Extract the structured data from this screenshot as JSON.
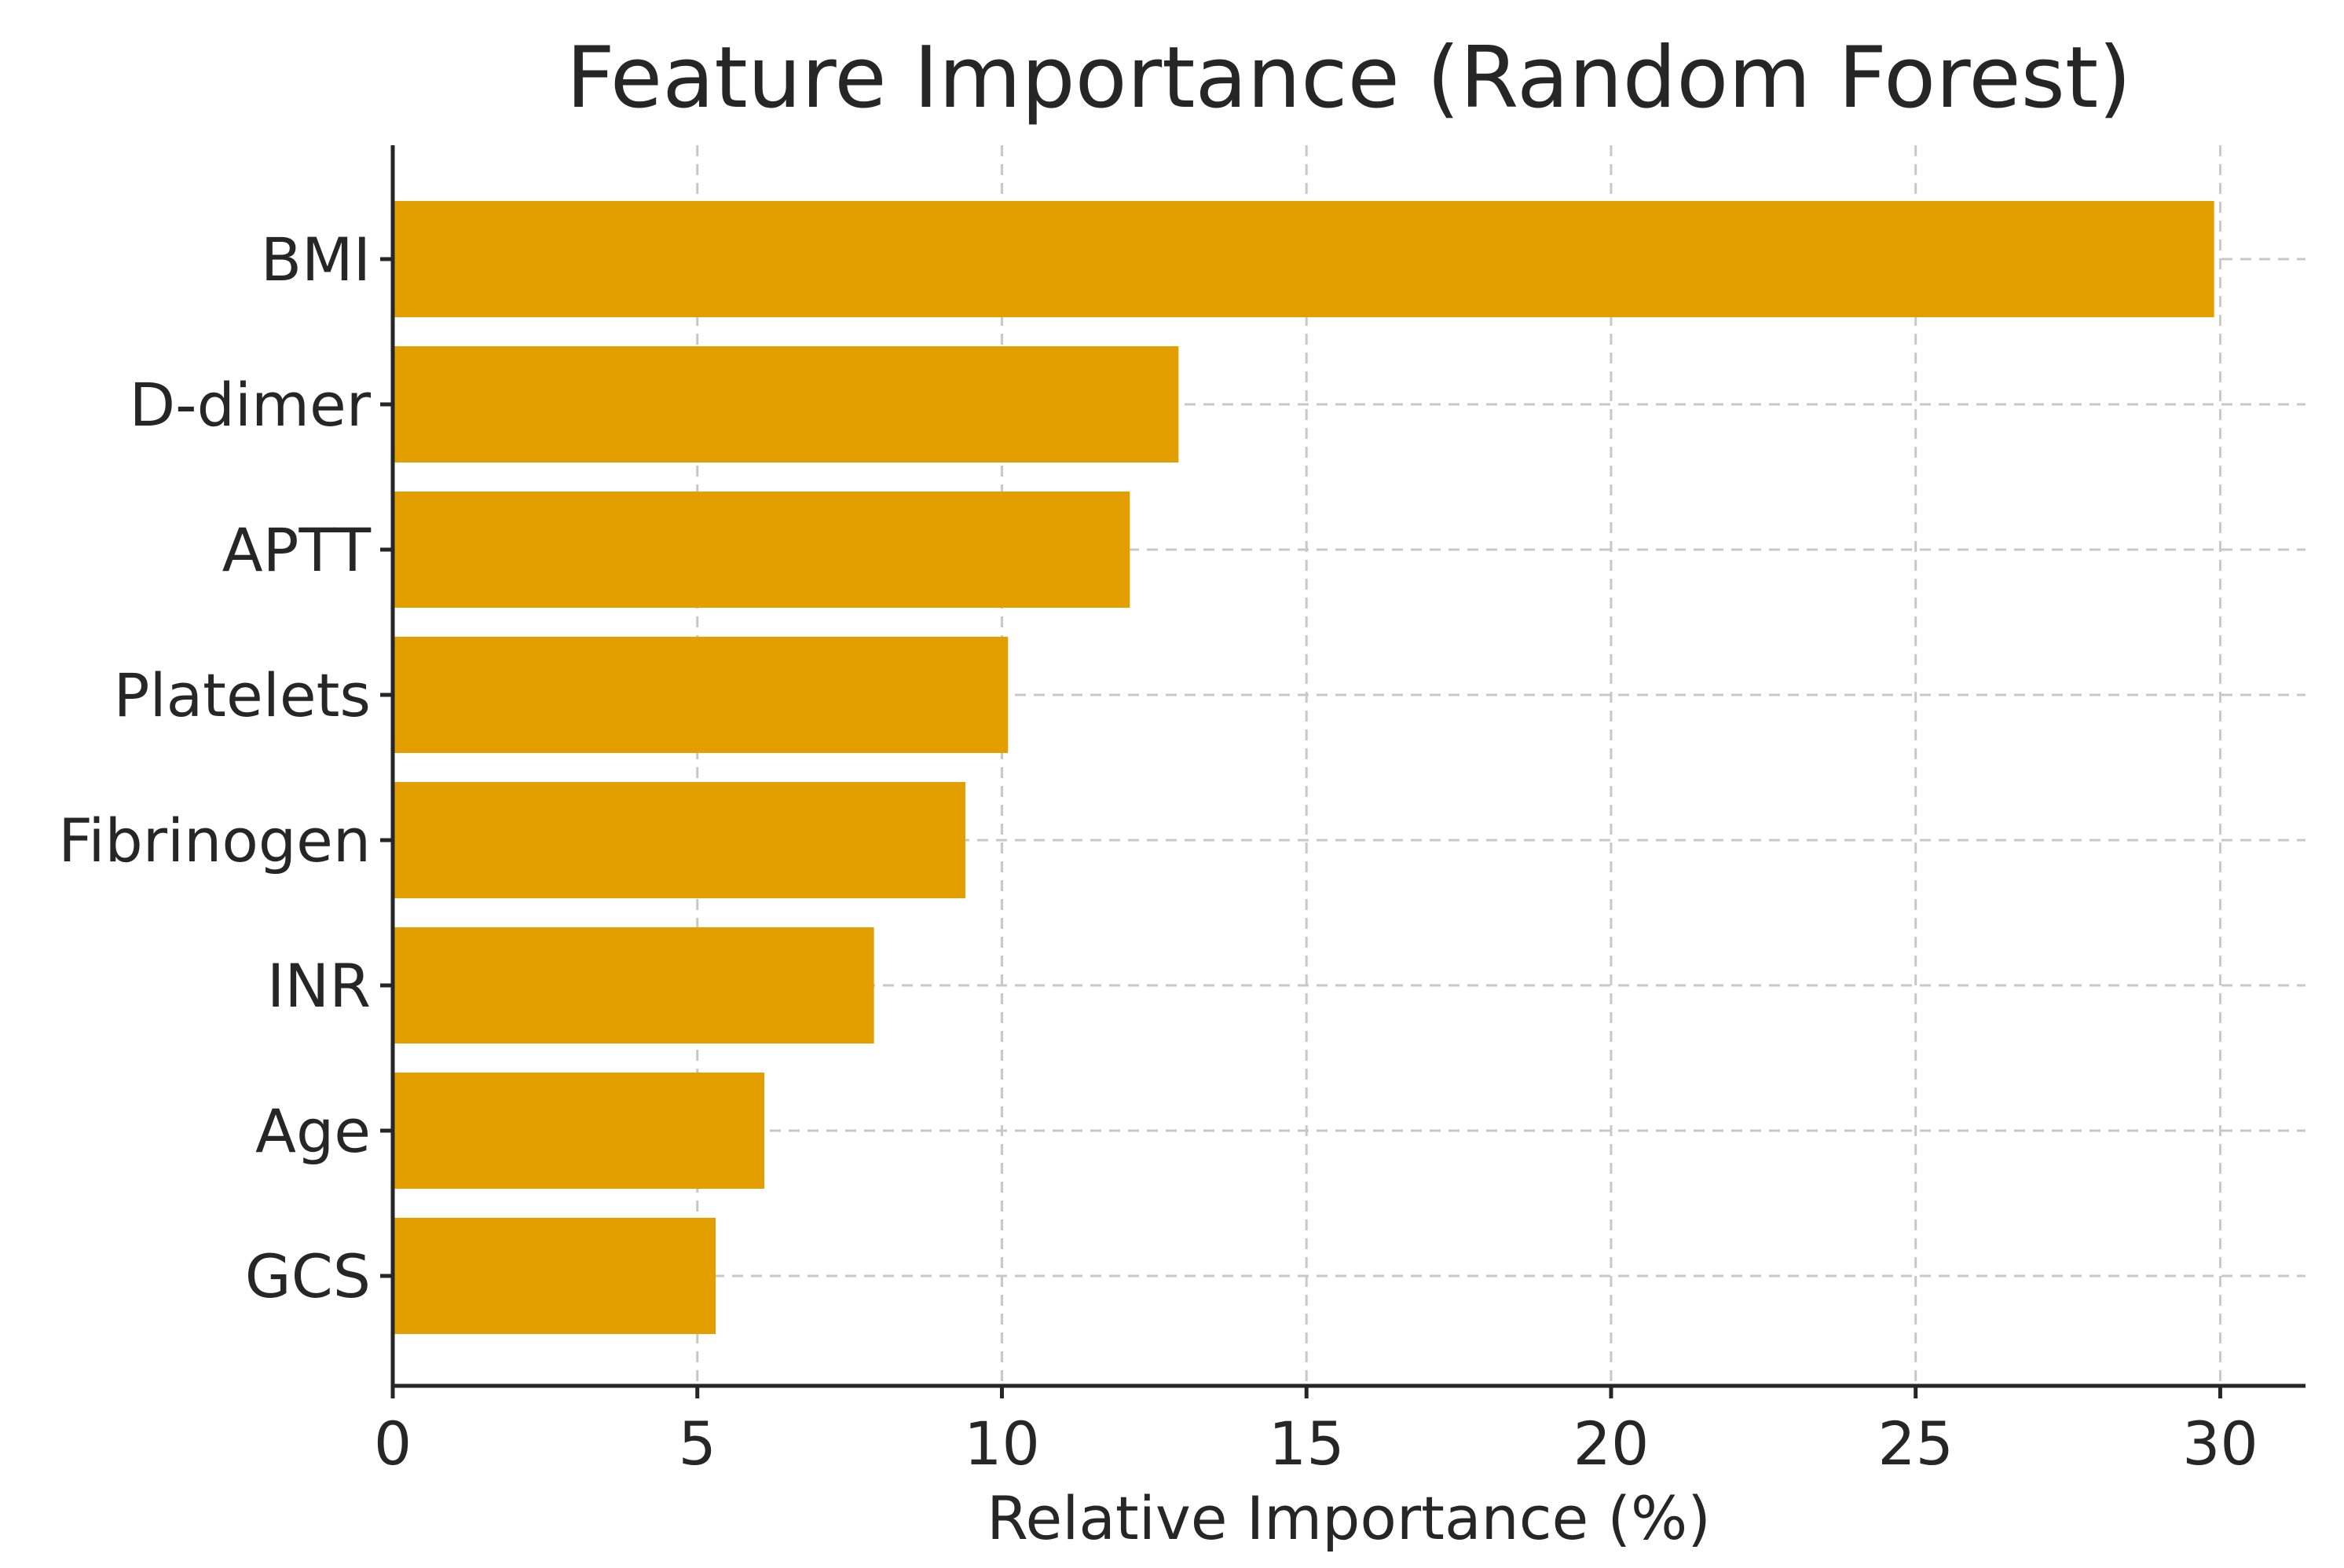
{
  "chart_data": {
    "type": "bar",
    "orientation": "horizontal",
    "title": "Feature Importance (Random Forest)",
    "xlabel": "Relative Importance (%)",
    "ylabel": "",
    "categories": [
      "BMI",
      "D-dimer",
      "APTT",
      "Platelets",
      "Fibrinogen",
      "INR",
      "Age",
      "GCS"
    ],
    "values": [
      29.9,
      12.9,
      12.1,
      10.1,
      9.4,
      7.9,
      6.1,
      5.3
    ],
    "xlim": [
      0,
      31.4
    ],
    "xticks": [
      0,
      5,
      10,
      15,
      20,
      25,
      30
    ],
    "xtick_labels": [
      "0",
      "5",
      "10",
      "15",
      "20",
      "25",
      "30"
    ],
    "grid": true,
    "grid_style": "dashed",
    "bar_color": "#E39F00",
    "text_color": "#262626",
    "grid_color": "#C8C8C8"
  }
}
